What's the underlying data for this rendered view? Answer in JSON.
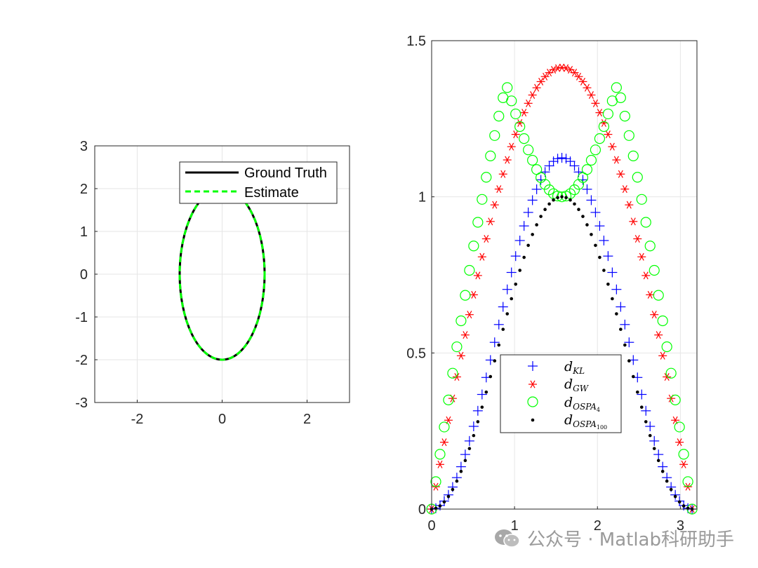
{
  "chart_data": [
    {
      "type": "line",
      "xlim": [
        -3,
        3
      ],
      "ylim": [
        -3,
        3
      ],
      "xticks": [
        "-2",
        "0",
        "2"
      ],
      "yticks": [
        "3",
        "2",
        "1",
        "0",
        "-1",
        "-2",
        "-3"
      ],
      "grid": true,
      "legend_position": "top-right",
      "series": [
        {
          "name": "Ground Truth",
          "style": "solid",
          "color": "#000000",
          "shape": "ellipse",
          "semi_axis_x": 1,
          "semi_axis_y": 2
        },
        {
          "name": "Estimate",
          "style": "dashed",
          "color": "#00ff00",
          "shape": "ellipse",
          "semi_axis_x": 1,
          "semi_axis_y": 2
        }
      ]
    },
    {
      "type": "scatter",
      "xlim": [
        0,
        3.2
      ],
      "ylim": [
        0,
        1.5
      ],
      "xticks": [
        "0",
        "1",
        "2",
        "3"
      ],
      "yticks": [
        "1.5",
        "1",
        "0.5",
        "0"
      ],
      "grid": true,
      "legend_position": "bottom-center",
      "x_range": [
        0,
        3.14159
      ],
      "num_points": 63,
      "series": [
        {
          "name": "d_KL",
          "marker": "plus",
          "color": "#0000ff",
          "peak": 1.125
        },
        {
          "name": "d_GW",
          "marker": "asterisk",
          "color": "#ff0000",
          "peak": 1.414
        },
        {
          "name": "d_OSPA_4",
          "marker": "circle",
          "color": "#00ff00",
          "peak_side": 1.36,
          "center_min": 1.0
        },
        {
          "name": "d_OSPA_100",
          "marker": "dot",
          "color": "#000000",
          "peak": 1.0
        }
      ]
    }
  ],
  "legend1": {
    "ground_truth": "Ground Truth",
    "estimate": "Estimate"
  },
  "legend2": [
    {
      "base": "d",
      "sub": "KL",
      "subsub": ""
    },
    {
      "base": "d",
      "sub": "GW",
      "subsub": ""
    },
    {
      "base": "d",
      "sub": "OSPA",
      "subsub": "4"
    },
    {
      "base": "d",
      "sub": "OSPA",
      "subsub": "100"
    }
  ],
  "watermark": {
    "text": "公众号 · Matlab科研助手",
    "icon": "wechat-icon"
  }
}
